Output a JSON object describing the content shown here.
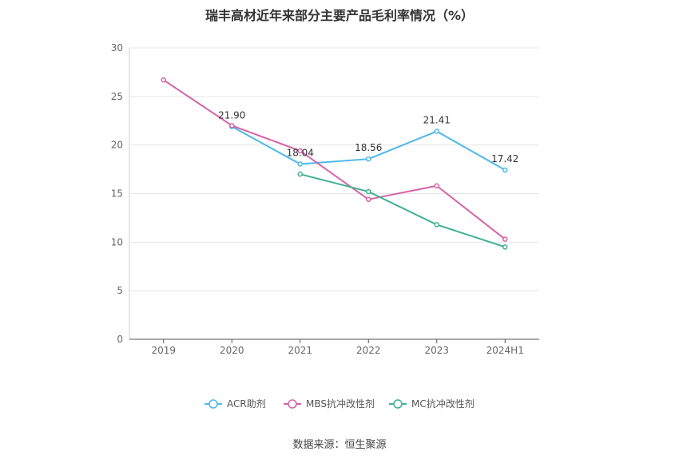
{
  "chart_data": {
    "type": "line",
    "title": "瑞丰高材近年来部分主要产品毛利率情况（%）",
    "categories": [
      "2019",
      "2020",
      "2021",
      "2022",
      "2023",
      "2024H1"
    ],
    "ylim": [
      0,
      30
    ],
    "yticks": [
      0,
      5,
      10,
      15,
      20,
      25,
      30
    ],
    "grid": true,
    "legend_position": "bottom-center",
    "series": [
      {
        "name": "ACR助剂",
        "color": "#4cb8ea",
        "values": [
          null,
          21.9,
          18.04,
          18.56,
          21.41,
          17.42
        ],
        "labels": [
          "",
          "21.90",
          "18.04",
          "18.56",
          "21.41",
          "17.42"
        ]
      },
      {
        "name": "MBS抗冲改性剂",
        "color": "#d562a8",
        "values": [
          26.7,
          22.0,
          19.4,
          14.4,
          15.8,
          10.3
        ]
      },
      {
        "name": "MC抗冲改性剂",
        "color": "#3fb08f",
        "values": [
          null,
          null,
          17.0,
          15.2,
          11.8,
          9.5
        ]
      }
    ]
  },
  "source": "数据来源：恒生聚源"
}
